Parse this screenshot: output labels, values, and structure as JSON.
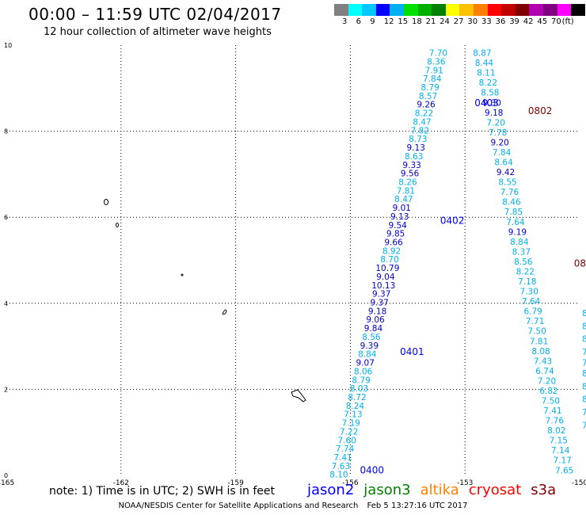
{
  "header": {
    "title": "00:00 – 11:59 UTC 02/04/2017",
    "subtitle": "12 hour collection of altimeter wave heights"
  },
  "colorbar": {
    "colors": [
      "#808080",
      "#00ffff",
      "#00c8ff",
      "#0000ff",
      "#00b0f0",
      "#00e000",
      "#00b000",
      "#008000",
      "#ffff00",
      "#ffc000",
      "#ff8000",
      "#ff0000",
      "#c00000",
      "#800000",
      "#b000b0",
      "#800080",
      "#ff00ff",
      "#000000"
    ],
    "labels": [
      "3",
      "6",
      "9",
      "12",
      "15",
      "18",
      "21",
      "24",
      "27",
      "30",
      "33",
      "36",
      "39",
      "42",
      "45",
      "70",
      "(ft)"
    ]
  },
  "axes": {
    "x_ticks": [
      "-165",
      "-162",
      "-159",
      "-156",
      "-153",
      "-150"
    ],
    "y_ticks": [
      "0",
      "2",
      "4",
      "6",
      "8",
      "10"
    ]
  },
  "note": "note: 1) Time is in UTC; 2) SWH is in feet",
  "legend": [
    {
      "name": "jason2",
      "color": "#0000ff"
    },
    {
      "name": "jason3",
      "color": "#008000"
    },
    {
      "name": "altika",
      "color": "#ff8000"
    },
    {
      "name": "cryosat",
      "color": "#ff0000"
    },
    {
      "name": "s3a",
      "color": "#800000"
    }
  ],
  "credit": {
    "agency": "NOAA/NESDIS Center for Satellite Applications and Research",
    "timestamp": "Feb  5 13:27:16 UTC 2017"
  },
  "colors": {
    "light": "#00b0f0",
    "dark": "#0000c8",
    "s3a": "#800000"
  },
  "time_labels": [
    {
      "text": "0400",
      "lon": -155.75,
      "lat": 0.05,
      "color": "#0000ff"
    },
    {
      "text": "0401",
      "lon": -154.7,
      "lat": 2.8,
      "color": "#0000ff"
    },
    {
      "text": "0402",
      "lon": -153.65,
      "lat": 5.85,
      "color": "#0000ff"
    },
    {
      "text": "0403",
      "lon": -152.75,
      "lat": 8.58,
      "color": "#0000ff"
    },
    {
      "text": "0802",
      "lon": -151.35,
      "lat": 8.4,
      "color": "#800000"
    },
    {
      "text": "08",
      "lon": -150.15,
      "lat": 4.85,
      "color": "#800000"
    }
  ],
  "tracks": {
    "jason2": {
      "start": {
        "lon": -156.3,
        "lat": -0.05
      },
      "end": {
        "lon": -153.7,
        "lat": 9.75
      },
      "values": [
        "8.10",
        "7.63",
        "7.41",
        "7.74",
        "7.60",
        "7.22",
        "7.19",
        "7.13",
        "8.24",
        "8.72",
        "8.03",
        "8.79",
        "8.06",
        "9.07",
        "8.84",
        "9.39",
        "8.56",
        "9.84",
        "9.06",
        "9.18",
        "9.37",
        "9.37",
        "10.13",
        "9.04",
        "10.79",
        "8.70",
        "8.92",
        "9.66",
        "9.85",
        "9.54",
        "9.13",
        "9.01",
        "8.47",
        "7.81",
        "8.26",
        "9.56",
        "9.33",
        "8.63",
        "9.13",
        "8.73",
        "7.82",
        "8.47",
        "8.22",
        "9.26",
        "8.57",
        "8.79",
        "7.84",
        "7.91",
        "8.36",
        "7.70"
      ],
      "levels": [
        "l",
        "l",
        "l",
        "l",
        "l",
        "l",
        "l",
        "l",
        "l",
        "l",
        "l",
        "l",
        "l",
        "d",
        "l",
        "d",
        "l",
        "d",
        "d",
        "d",
        "d",
        "d",
        "d",
        "d",
        "d",
        "l",
        "l",
        "d",
        "d",
        "d",
        "d",
        "d",
        "l",
        "l",
        "l",
        "d",
        "d",
        "l",
        "d",
        "l",
        "l",
        "l",
        "l",
        "d",
        "l",
        "l",
        "l",
        "l",
        "l",
        "l"
      ]
    },
    "s3a": {
      "start": {
        "lon": -152.55,
        "lat": 9.75
      },
      "end": {
        "lon": -150.4,
        "lat": 0.05
      },
      "values": [
        "8.87",
        "8.44",
        "8.11",
        "8.22",
        "8.58",
        "9.30",
        "9.18",
        "7.20",
        "7.78",
        "9.20",
        "7.84",
        "8.64",
        "9.42",
        "8.55",
        "7.76",
        "8.46",
        "7.85",
        "7.64",
        "9.19",
        "8.84",
        "8.37",
        "8.56",
        "8.22",
        "7.18",
        "7.30",
        "7.64",
        "6.79",
        "7.71",
        "7.50",
        "7.81",
        "8.08",
        "7.43",
        "6.74",
        "7.20",
        "6.82",
        "7.50",
        "7.41",
        "7.76",
        "8.02",
        "7.15",
        "7.14",
        "7.17",
        "7.65"
      ],
      "levels": [
        "l",
        "l",
        "l",
        "l",
        "l",
        "d",
        "d",
        "l",
        "l",
        "d",
        "l",
        "l",
        "d",
        "l",
        "l",
        "l",
        "l",
        "l",
        "d",
        "l",
        "l",
        "l",
        "l",
        "l",
        "l",
        "l",
        "l",
        "l",
        "l",
        "l",
        "l",
        "l",
        "l",
        "l",
        "l",
        "l",
        "l",
        "l",
        "l",
        "l",
        "l",
        "l",
        "l"
      ]
    },
    "edge_labels": [
      {
        "text": "8",
        "lat": 3.7
      },
      {
        "text": "8",
        "lat": 3.4
      },
      {
        "text": "8",
        "lat": 3.1
      },
      {
        "text": "7",
        "lat": 2.8
      },
      {
        "text": "7",
        "lat": 2.55
      },
      {
        "text": "8",
        "lat": 2.3
      },
      {
        "text": "8",
        "lat": 2.0
      },
      {
        "text": "8",
        "lat": 1.7
      },
      {
        "text": "7",
        "lat": 1.4
      },
      {
        "text": "7",
        "lat": 1.1
      }
    ]
  }
}
